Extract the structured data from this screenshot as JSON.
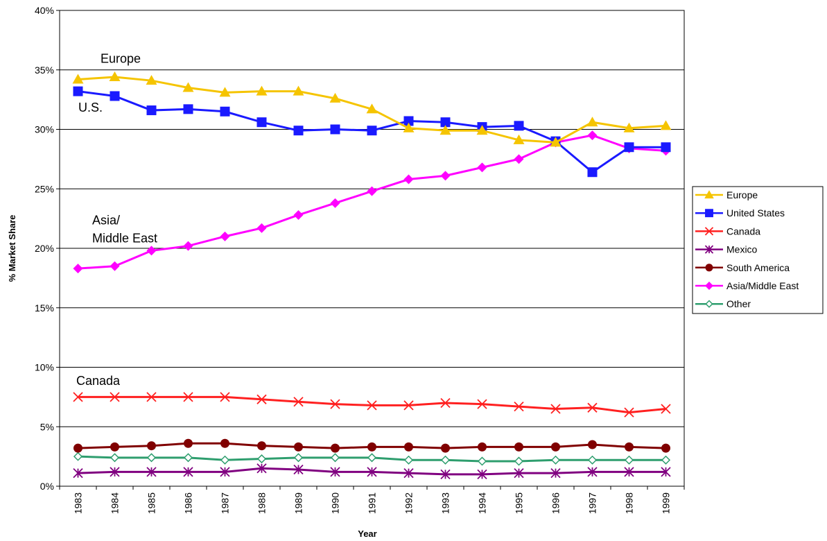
{
  "chart_data": {
    "type": "line",
    "title": "",
    "xlabel": "Year",
    "ylabel": "% Market Share",
    "ylim": [
      0,
      40
    ],
    "yticks": [
      "0%",
      "5%",
      "10%",
      "15%",
      "20%",
      "25%",
      "30%",
      "35%",
      "40%"
    ],
    "grid": "horizontal",
    "legend_position": "right",
    "x": [
      "1983",
      "1984",
      "1985",
      "1986",
      "1987",
      "1988",
      "1989",
      "1990",
      "1991",
      "1992",
      "1993",
      "1994",
      "1995",
      "1996",
      "1997",
      "1998",
      "1999"
    ],
    "series": [
      {
        "name": "Europe",
        "color": "#f5c400",
        "marker": "triangle",
        "values": [
          34.2,
          34.4,
          34.1,
          33.5,
          33.1,
          33.2,
          33.2,
          32.6,
          31.7,
          30.1,
          29.9,
          29.9,
          29.1,
          28.9,
          30.6,
          30.1,
          30.3
        ]
      },
      {
        "name": "United States",
        "color": "#1a1aff",
        "marker": "square",
        "values": [
          33.2,
          32.8,
          31.6,
          31.7,
          31.5,
          30.6,
          29.9,
          30.0,
          29.9,
          30.7,
          30.6,
          30.2,
          30.3,
          29.0,
          26.4,
          28.5,
          28.5
        ]
      },
      {
        "name": "Canada",
        "color": "#ff2020",
        "marker": "x",
        "values": [
          7.5,
          7.5,
          7.5,
          7.5,
          7.5,
          7.3,
          7.1,
          6.9,
          6.8,
          6.8,
          7.0,
          6.9,
          6.7,
          6.5,
          6.6,
          6.2,
          6.5
        ]
      },
      {
        "name": "Mexico",
        "color": "#800080",
        "marker": "star",
        "values": [
          1.1,
          1.2,
          1.2,
          1.2,
          1.2,
          1.5,
          1.4,
          1.2,
          1.2,
          1.1,
          1.0,
          1.0,
          1.1,
          1.1,
          1.2,
          1.2,
          1.2
        ]
      },
      {
        "name": "South America",
        "color": "#800000",
        "marker": "circle",
        "values": [
          3.2,
          3.3,
          3.4,
          3.6,
          3.6,
          3.4,
          3.3,
          3.2,
          3.3,
          3.3,
          3.2,
          3.3,
          3.3,
          3.3,
          3.5,
          3.3,
          3.2
        ]
      },
      {
        "name": "Asia/Middle East",
        "color": "#ff00ff",
        "marker": "diamond",
        "values": [
          18.3,
          18.5,
          19.8,
          20.2,
          21.0,
          21.7,
          22.8,
          23.8,
          24.8,
          25.8,
          26.1,
          26.8,
          27.5,
          28.9,
          29.5,
          28.4,
          28.2
        ]
      },
      {
        "name": "Other",
        "color": "#2e9e6e",
        "marker": "diamond-open",
        "values": [
          2.5,
          2.4,
          2.4,
          2.4,
          2.2,
          2.3,
          2.4,
          2.4,
          2.4,
          2.2,
          2.2,
          2.1,
          2.1,
          2.2,
          2.2,
          2.2,
          2.2
        ]
      }
    ],
    "annotations": [
      {
        "text": "Europe",
        "x": "1984",
        "y": 35.6
      },
      {
        "text": "U.S.",
        "x": "1983",
        "y": 31.5
      },
      {
        "text": "Asia/",
        "x": "1983",
        "y": 22.0
      },
      {
        "text": "Middle East",
        "x": "1983",
        "y": 20.5
      },
      {
        "text": "Canada",
        "x": "1983",
        "y": 8.5
      }
    ]
  }
}
